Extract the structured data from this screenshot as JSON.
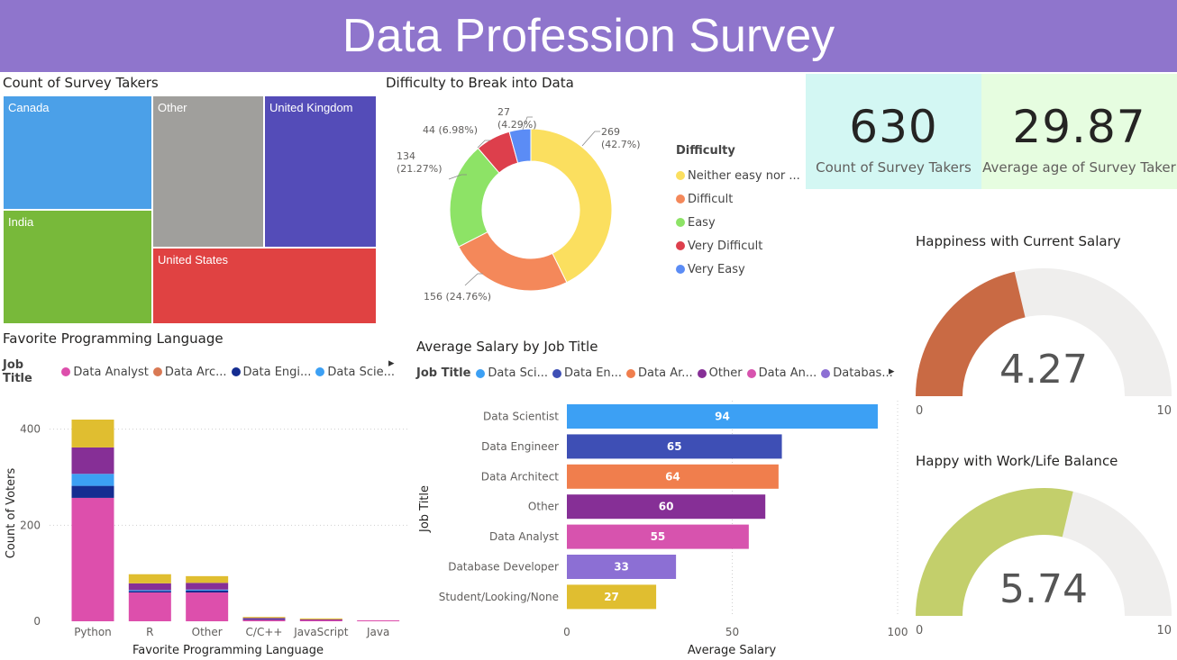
{
  "title": "Data Profession Survey",
  "colors": {
    "header": "#8f75cc",
    "kpi1_bg": "#d3f7f3",
    "kpi2_bg": "#e6fde0"
  },
  "treemap": {
    "title": "Count of Survey Takers",
    "tiles": [
      {
        "label": "Canada",
        "color": "#4ba0e8"
      },
      {
        "label": "India",
        "color": "#78b93a"
      },
      {
        "label": "Other",
        "color": "#a09f9c"
      },
      {
        "label": "United Kingdom",
        "color": "#544cb8"
      },
      {
        "label": "United States",
        "color": "#e04242"
      }
    ]
  },
  "donut": {
    "title": "Difficulty to Break into Data",
    "legend_title": "Difficulty",
    "slices": [
      {
        "name": "Neither easy nor ...",
        "value": 269,
        "label": "269",
        "pct": "(42.7%)",
        "color": "#fbdf5f"
      },
      {
        "name": "Difficult",
        "value": 156,
        "label": "156 (24.76%)",
        "pct": "",
        "color": "#f4885a"
      },
      {
        "name": "Easy",
        "value": 134,
        "label": "134",
        "pct": "(21.27%)",
        "color": "#8de366"
      },
      {
        "name": "Very Difficult",
        "value": 44,
        "label": "44 (6.98%)",
        "pct": "",
        "color": "#dd3f4c"
      },
      {
        "name": "Very Easy",
        "value": 27,
        "label": "27",
        "pct": "(4.29%)",
        "color": "#5b8cf5"
      }
    ]
  },
  "kpis": [
    {
      "value": "630",
      "label": "Count of Survey Takers"
    },
    {
      "value": "29.87",
      "label": "Average age of Survey Taker"
    }
  ],
  "gauges": [
    {
      "title": "Happiness with Current Salary",
      "value": 4.27,
      "display": "4.27",
      "min": "0",
      "max": "10",
      "color": "#c96a44",
      "track": "#efeeed"
    },
    {
      "title": "Happy with Work/Life Balance",
      "value": 5.74,
      "display": "5.74",
      "min": "0",
      "max": "10",
      "color": "#c3cf6b",
      "track": "#efeeed"
    }
  ],
  "lang_chart": {
    "title": "Favorite Programming Language",
    "legend_title": "Job Title",
    "legend": [
      {
        "name": "Data Analyst",
        "color": "#dd4fac"
      },
      {
        "name": "Data Arc...",
        "color": "#d97954"
      },
      {
        "name": "Data Engi...",
        "color": "#152d91"
      },
      {
        "name": "Data Scie...",
        "color": "#3ca0f4"
      }
    ],
    "more_arrow": "▸"
  },
  "salary_chart": {
    "title": "Average Salary by Job Title",
    "legend_title": "Job Title",
    "legend": [
      {
        "name": "Data Sci...",
        "color": "#3ca0f4"
      },
      {
        "name": "Data En...",
        "color": "#3e4fb5"
      },
      {
        "name": "Data Ar...",
        "color": "#f07e4d"
      },
      {
        "name": "Other",
        "color": "#862f96"
      },
      {
        "name": "Data An...",
        "color": "#d753ae"
      },
      {
        "name": "Databas...",
        "color": "#8c6fd4"
      }
    ],
    "more_arrow": "▸"
  },
  "chart_data": [
    {
      "type": "bar",
      "title": "Favorite Programming Language",
      "stacked": true,
      "xlabel": "Favorite Programming Language",
      "ylabel": "Count of Voters",
      "categories": [
        "Python",
        "R",
        "Other",
        "C/C++",
        "JavaScript",
        "Java"
      ],
      "ylim": [
        0,
        450
      ],
      "yticks": [
        0,
        200,
        400
      ],
      "series": [
        {
          "name": "Data Analyst",
          "color": "#dd4fac",
          "values": [
            257,
            60,
            60,
            4,
            3,
            2
          ]
        },
        {
          "name": "Data Engineer",
          "color": "#152d91",
          "values": [
            25,
            3,
            4,
            1,
            0,
            0
          ]
        },
        {
          "name": "Data Scientist",
          "color": "#3ca0f4",
          "values": [
            25,
            2,
            2,
            0,
            0,
            0
          ]
        },
        {
          "color": "#862f96",
          "values": [
            55,
            14,
            14,
            2,
            1,
            0
          ]
        },
        {
          "color": "#e0be30",
          "values": [
            58,
            19,
            14,
            2,
            2,
            0
          ]
        }
      ]
    },
    {
      "type": "bar",
      "orientation": "horizontal",
      "title": "Average Salary by Job Title",
      "xlabel": "Average Salary",
      "ylabel": "Job Title",
      "categories": [
        "Data Scientist",
        "Data Engineer",
        "Data Architect",
        "Other",
        "Data Analyst",
        "Database Developer",
        "Student/Looking/None"
      ],
      "values": [
        94,
        65,
        64,
        60,
        55,
        33,
        27
      ],
      "colors": [
        "#3ca0f4",
        "#3e4fb5",
        "#f07e4d",
        "#862f96",
        "#d753ae",
        "#8c6fd4",
        "#e0be30"
      ],
      "xlim": [
        0,
        100
      ],
      "xticks": [
        0,
        50,
        100
      ]
    }
  ]
}
